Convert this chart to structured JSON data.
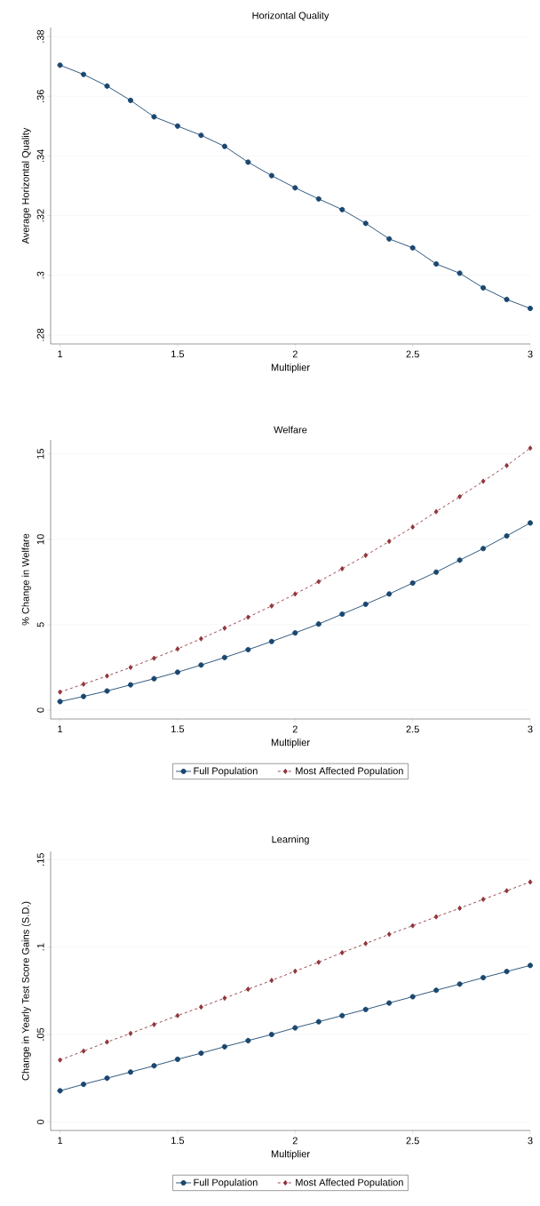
{
  "chart_data": [
    {
      "type": "line",
      "title": "Horizontal Quality",
      "xlabel": "Multiplier",
      "ylabel": "Average Horizontal Quality",
      "x": [
        1,
        1.1,
        1.2,
        1.3,
        1.4,
        1.5,
        1.6,
        1.7,
        1.8,
        1.9,
        2,
        2.1,
        2.2,
        2.3,
        2.4,
        2.5,
        2.6,
        2.7,
        2.8,
        2.9,
        3
      ],
      "series": [
        {
          "color": "#1a476f",
          "marker": "circle",
          "line_style": "solid",
          "values": [
            0.3704,
            0.3673,
            0.3634,
            0.3586,
            0.3531,
            0.35,
            0.3469,
            0.3432,
            0.3379,
            0.3334,
            0.3293,
            0.3256,
            0.322,
            0.3174,
            0.3122,
            0.3092,
            0.3038,
            0.3007,
            0.2958,
            0.2919,
            0.2889
          ]
        }
      ],
      "xlim": [
        0.96,
        3
      ],
      "ylim": [
        0.277,
        0.383
      ],
      "xticks": [
        1,
        1.5,
        2,
        2.5,
        3
      ],
      "yticks": [
        {
          "value": 0.28,
          "label": ".28"
        },
        {
          "value": 0.3,
          "label": ".3"
        },
        {
          "value": 0.32,
          "label": ".32"
        },
        {
          "value": 0.34,
          "label": ".34"
        },
        {
          "value": 0.36,
          "label": ".36"
        },
        {
          "value": 0.38,
          "label": ".38"
        }
      ],
      "grid": "y"
    },
    {
      "type": "line",
      "title": "Welfare",
      "xlabel": "Multiplier",
      "ylabel": "% Change in Welfare",
      "x": [
        1,
        1.1,
        1.2,
        1.3,
        1.4,
        1.5,
        1.6,
        1.7,
        1.8,
        1.9,
        2,
        2.1,
        2.2,
        2.3,
        2.4,
        2.5,
        2.6,
        2.7,
        2.8,
        2.9,
        3
      ],
      "series": [
        {
          "name": "Full Population",
          "color": "#1a476f",
          "marker": "circle",
          "line_style": "solid",
          "values": [
            0.5,
            0.8,
            1.12,
            1.48,
            1.84,
            2.22,
            2.64,
            3.08,
            3.54,
            4.02,
            4.52,
            5.04,
            5.62,
            6.2,
            6.8,
            7.44,
            8.08,
            8.78,
            9.46,
            10.2,
            10.96
          ]
        },
        {
          "name": "Most Affected Population",
          "color": "#90353b",
          "marker": "diamond",
          "line_style": "dashed",
          "values": [
            1.06,
            1.52,
            2.0,
            2.5,
            3.04,
            3.58,
            4.18,
            4.8,
            5.44,
            6.1,
            6.8,
            7.52,
            8.28,
            9.06,
            9.88,
            10.72,
            11.62,
            12.5,
            13.4,
            14.32,
            15.34
          ]
        }
      ],
      "xlim": [
        0.96,
        3
      ],
      "ylim": [
        -0.52,
        15.82
      ],
      "xticks": [
        1,
        1.5,
        2,
        2.5,
        3
      ],
      "yticks": [
        0,
        5,
        10,
        15
      ],
      "grid": "y",
      "legend": "bottom"
    },
    {
      "type": "line",
      "title": "Learning",
      "xlabel": "Multiplier",
      "ylabel": "Change in Yearly Test Score Gains (S.D.)",
      "x": [
        1,
        1.1,
        1.2,
        1.3,
        1.4,
        1.5,
        1.6,
        1.7,
        1.8,
        1.9,
        2,
        2.1,
        2.2,
        2.3,
        2.4,
        2.5,
        2.6,
        2.7,
        2.8,
        2.9,
        3
      ],
      "series": [
        {
          "name": "Full Population",
          "color": "#1a476f",
          "marker": "circle",
          "line_style": "solid",
          "values": [
            0.0178,
            0.0215,
            0.025,
            0.0285,
            0.0321,
            0.0358,
            0.0393,
            0.043,
            0.0465,
            0.05,
            0.0538,
            0.0573,
            0.0608,
            0.0643,
            0.068,
            0.0716,
            0.0753,
            0.0788,
            0.0825,
            0.086,
            0.0895
          ]
        },
        {
          "name": "Most Affected Population",
          "color": "#90353b",
          "marker": "diamond",
          "line_style": "dashed",
          "values": [
            0.0354,
            0.0405,
            0.0457,
            0.0506,
            0.0557,
            0.0608,
            0.0657,
            0.0708,
            0.0759,
            0.0809,
            0.0862,
            0.0913,
            0.0968,
            0.102,
            0.1073,
            0.1122,
            0.1173,
            0.1222,
            0.1273,
            0.1322,
            0.1372
          ]
        }
      ],
      "xlim": [
        0.96,
        3
      ],
      "ylim": [
        -0.0049,
        0.1547
      ],
      "xticks": [
        1,
        1.5,
        2,
        2.5,
        3
      ],
      "yticks": [
        {
          "value": 0,
          "label": "0"
        },
        {
          "value": 0.05,
          "label": ".05"
        },
        {
          "value": 0.1,
          "label": ".1"
        },
        {
          "value": 0.15,
          "label": ".15"
        }
      ],
      "grid": "y",
      "legend": "bottom"
    }
  ]
}
